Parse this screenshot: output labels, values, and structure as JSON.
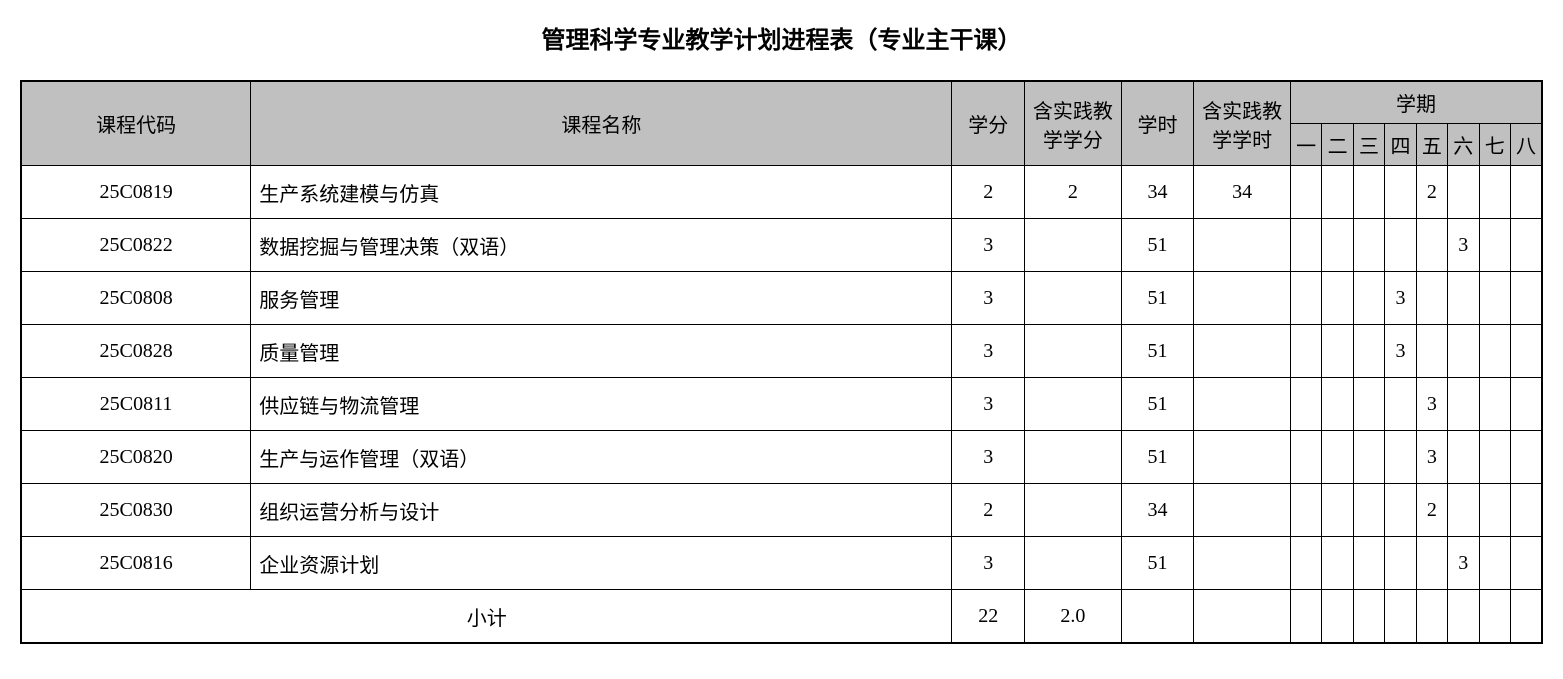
{
  "title": "管理科学专业教学计划进程表（专业主干课）",
  "headers": {
    "code": "课程代码",
    "name": "课程名称",
    "credit": "学分",
    "practice_credit": "含实践教学学分",
    "hours": "学时",
    "practice_hours": "含实践教学学时",
    "semester_group": "学期",
    "semesters": [
      "一",
      "二",
      "三",
      "四",
      "五",
      "六",
      "七",
      "八"
    ]
  },
  "rows": [
    {
      "code": "25C0819",
      "name": "生产系统建模与仿真",
      "credit": "2",
      "pcredit": "2",
      "hours": "34",
      "phours": "34",
      "sems": [
        "",
        "",
        "",
        "",
        "2",
        "",
        "",
        ""
      ]
    },
    {
      "code": "25C0822",
      "name": "数据挖掘与管理决策（双语）",
      "credit": "3",
      "pcredit": "",
      "hours": "51",
      "phours": "",
      "sems": [
        "",
        "",
        "",
        "",
        "",
        "3",
        "",
        ""
      ]
    },
    {
      "code": "25C0808",
      "name": "服务管理",
      "credit": "3",
      "pcredit": "",
      "hours": "51",
      "phours": "",
      "sems": [
        "",
        "",
        "",
        "3",
        "",
        "",
        "",
        ""
      ]
    },
    {
      "code": "25C0828",
      "name": "质量管理",
      "credit": "3",
      "pcredit": "",
      "hours": "51",
      "phours": "",
      "sems": [
        "",
        "",
        "",
        "3",
        "",
        "",
        "",
        ""
      ]
    },
    {
      "code": "25C0811",
      "name": "供应链与物流管理",
      "credit": "3",
      "pcredit": "",
      "hours": "51",
      "phours": "",
      "sems": [
        "",
        "",
        "",
        "",
        "3",
        "",
        "",
        ""
      ]
    },
    {
      "code": "25C0820",
      "name": "生产与运作管理（双语）",
      "credit": "3",
      "pcredit": "",
      "hours": "51",
      "phours": "",
      "sems": [
        "",
        "",
        "",
        "",
        "3",
        "",
        "",
        ""
      ]
    },
    {
      "code": "25C0830",
      "name": "组织运营分析与设计",
      "credit": "2",
      "pcredit": "",
      "hours": "34",
      "phours": "",
      "sems": [
        "",
        "",
        "",
        "",
        "2",
        "",
        "",
        ""
      ]
    },
    {
      "code": "25C0816",
      "name": "企业资源计划",
      "credit": "3",
      "pcredit": "",
      "hours": "51",
      "phours": "",
      "sems": [
        "",
        "",
        "",
        "",
        "",
        "3",
        "",
        ""
      ]
    }
  ],
  "subtotal": {
    "label": "小计",
    "credit": "22",
    "pcredit": "2.0",
    "hours": "",
    "phours": "",
    "sems": [
      "",
      "",
      "",
      "",
      "",
      "",
      "",
      ""
    ]
  },
  "style": {
    "header_bg": "#c0c0c0",
    "border_color": "#000000",
    "title_fontsize": 24,
    "cell_fontsize": 20
  }
}
